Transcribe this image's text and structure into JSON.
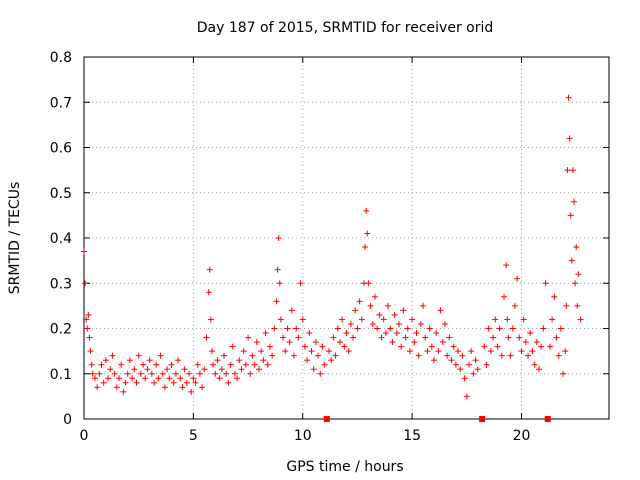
{
  "chart_data": {
    "type": "scatter",
    "title": "Day 187 of 2015, SRMTID for receiver orid",
    "xlabel": "GPS time / hours",
    "ylabel": "SRMTID / TECUs",
    "xlim": [
      0,
      24
    ],
    "ylim": [
      0,
      0.8
    ],
    "xticks": [
      0,
      5,
      10,
      15,
      20
    ],
    "xtick_labels": [
      "0",
      "5",
      "10",
      "15",
      "20"
    ],
    "yticks": [
      0,
      0.1,
      0.2,
      0.3,
      0.4,
      0.5,
      0.6,
      0.7,
      0.8
    ],
    "ytick_labels": [
      "0",
      "0.1",
      "0.2",
      "0.3",
      "0.4",
      "0.5",
      "0.6",
      "0.7",
      "0.8"
    ],
    "grid": true,
    "marker": "+",
    "color": "#ff0000",
    "gap_markers_x": [
      11.1,
      18.2,
      21.2
    ],
    "series": [
      {
        "name": "SRMTID",
        "x": [
          0.0,
          0.05,
          0.1,
          0.15,
          0.2,
          0.25,
          0.3,
          0.35,
          0.4,
          0.5,
          0.6,
          0.7,
          0.8,
          0.9,
          1.0,
          1.1,
          1.2,
          1.3,
          1.4,
          1.5,
          1.6,
          1.7,
          1.8,
          1.9,
          2.0,
          2.1,
          2.2,
          2.3,
          2.4,
          2.5,
          2.6,
          2.7,
          2.8,
          2.9,
          3.0,
          3.1,
          3.2,
          3.3,
          3.4,
          3.5,
          3.6,
          3.7,
          3.8,
          3.9,
          4.0,
          4.1,
          4.2,
          4.3,
          4.4,
          4.5,
          4.6,
          4.7,
          4.8,
          4.9,
          5.0,
          5.1,
          5.2,
          5.3,
          5.4,
          5.5,
          5.6,
          5.7,
          5.75,
          5.8,
          5.85,
          5.9,
          6.0,
          6.1,
          6.2,
          6.3,
          6.4,
          6.5,
          6.6,
          6.7,
          6.8,
          6.9,
          7.0,
          7.1,
          7.2,
          7.3,
          7.4,
          7.5,
          7.6,
          7.7,
          7.8,
          7.9,
          8.0,
          8.1,
          8.2,
          8.3,
          8.4,
          8.5,
          8.6,
          8.7,
          8.8,
          8.85,
          8.9,
          8.95,
          9.0,
          9.1,
          9.2,
          9.3,
          9.4,
          9.5,
          9.6,
          9.7,
          9.8,
          9.9,
          10.0,
          10.1,
          10.2,
          10.3,
          10.4,
          10.5,
          10.6,
          10.7,
          10.8,
          10.9,
          11.0,
          11.2,
          11.3,
          11.4,
          11.5,
          11.6,
          11.7,
          11.8,
          11.9,
          12.0,
          12.1,
          12.2,
          12.3,
          12.4,
          12.5,
          12.6,
          12.7,
          12.8,
          12.85,
          12.9,
          12.95,
          13.0,
          13.1,
          13.2,
          13.3,
          13.4,
          13.5,
          13.6,
          13.7,
          13.8,
          13.9,
          14.0,
          14.1,
          14.2,
          14.3,
          14.4,
          14.5,
          14.6,
          14.7,
          14.8,
          14.9,
          15.0,
          15.1,
          15.2,
          15.3,
          15.4,
          15.5,
          15.6,
          15.7,
          15.8,
          15.9,
          16.0,
          16.1,
          16.2,
          16.3,
          16.4,
          16.5,
          16.6,
          16.7,
          16.8,
          16.9,
          17.0,
          17.1,
          17.2,
          17.3,
          17.4,
          17.5,
          17.6,
          17.7,
          17.8,
          17.9,
          18.0,
          18.3,
          18.4,
          18.5,
          18.6,
          18.7,
          18.8,
          18.9,
          19.0,
          19.1,
          19.2,
          19.3,
          19.35,
          19.4,
          19.5,
          19.6,
          19.7,
          19.8,
          19.9,
          20.0,
          20.1,
          20.2,
          20.3,
          20.4,
          20.5,
          20.6,
          20.7,
          20.8,
          20.9,
          21.0,
          21.1,
          21.3,
          21.4,
          21.5,
          21.6,
          21.7,
          21.8,
          21.9,
          22.0,
          22.05,
          22.1,
          22.15,
          22.2,
          22.25,
          22.3,
          22.35,
          22.4,
          22.45,
          22.5,
          22.55,
          22.6,
          22.7
        ],
        "y": [
          0.37,
          0.3,
          0.22,
          0.2,
          0.23,
          0.18,
          0.15,
          0.12,
          0.1,
          0.09,
          0.07,
          0.1,
          0.12,
          0.08,
          0.13,
          0.09,
          0.11,
          0.14,
          0.1,
          0.07,
          0.09,
          0.12,
          0.06,
          0.08,
          0.1,
          0.13,
          0.09,
          0.11,
          0.08,
          0.14,
          0.1,
          0.12,
          0.09,
          0.11,
          0.13,
          0.1,
          0.08,
          0.12,
          0.09,
          0.14,
          0.1,
          0.07,
          0.11,
          0.09,
          0.12,
          0.08,
          0.1,
          0.13,
          0.09,
          0.07,
          0.11,
          0.08,
          0.1,
          0.06,
          0.09,
          0.08,
          0.12,
          0.1,
          0.07,
          0.11,
          0.18,
          0.28,
          0.33,
          0.22,
          0.15,
          0.12,
          0.1,
          0.13,
          0.09,
          0.11,
          0.14,
          0.1,
          0.08,
          0.12,
          0.16,
          0.1,
          0.09,
          0.13,
          0.11,
          0.15,
          0.12,
          0.18,
          0.1,
          0.14,
          0.12,
          0.17,
          0.11,
          0.15,
          0.13,
          0.19,
          0.12,
          0.16,
          0.14,
          0.2,
          0.26,
          0.33,
          0.4,
          0.3,
          0.22,
          0.18,
          0.15,
          0.2,
          0.17,
          0.24,
          0.14,
          0.2,
          0.18,
          0.3,
          0.22,
          0.16,
          0.13,
          0.19,
          0.15,
          0.11,
          0.17,
          0.14,
          0.1,
          0.16,
          0.12,
          0.15,
          0.13,
          0.18,
          0.14,
          0.2,
          0.17,
          0.22,
          0.16,
          0.19,
          0.15,
          0.21,
          0.18,
          0.24,
          0.2,
          0.26,
          0.22,
          0.3,
          0.38,
          0.46,
          0.41,
          0.3,
          0.25,
          0.21,
          0.27,
          0.2,
          0.23,
          0.18,
          0.22,
          0.19,
          0.25,
          0.2,
          0.17,
          0.23,
          0.19,
          0.21,
          0.16,
          0.24,
          0.18,
          0.2,
          0.15,
          0.22,
          0.17,
          0.19,
          0.14,
          0.21,
          0.25,
          0.18,
          0.15,
          0.2,
          0.16,
          0.13,
          0.19,
          0.15,
          0.24,
          0.17,
          0.21,
          0.14,
          0.18,
          0.13,
          0.16,
          0.12,
          0.15,
          0.11,
          0.14,
          0.09,
          0.05,
          0.12,
          0.15,
          0.1,
          0.13,
          0.11,
          0.16,
          0.12,
          0.2,
          0.15,
          0.18,
          0.22,
          0.16,
          0.2,
          0.14,
          0.27,
          0.34,
          0.22,
          0.18,
          0.14,
          0.2,
          0.25,
          0.31,
          0.18,
          0.15,
          0.22,
          0.17,
          0.14,
          0.19,
          0.15,
          0.12,
          0.17,
          0.11,
          0.16,
          0.2,
          0.3,
          0.16,
          0.22,
          0.27,
          0.18,
          0.14,
          0.2,
          0.1,
          0.15,
          0.25,
          0.55,
          0.71,
          0.62,
          0.45,
          0.35,
          0.55,
          0.48,
          0.3,
          0.38,
          0.25,
          0.32,
          0.22
        ]
      }
    ]
  }
}
